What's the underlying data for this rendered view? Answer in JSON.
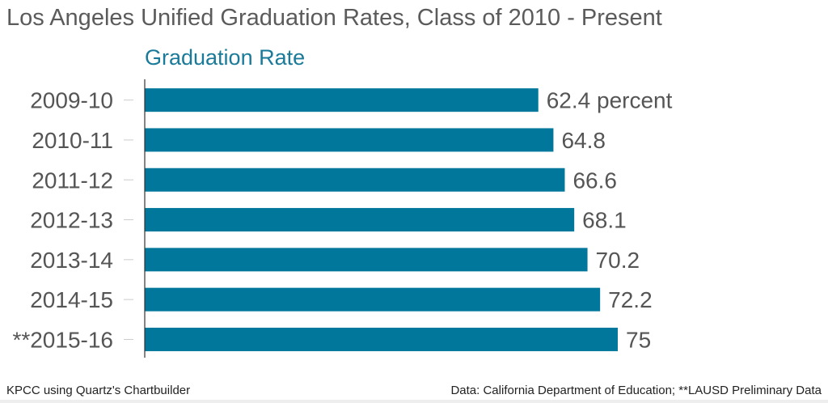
{
  "chart_data": {
    "type": "bar",
    "orientation": "horizontal",
    "title": "Los Angeles Unified Graduation Rates, Class of 2010 - Present",
    "series_title": "Graduation Rate",
    "categories": [
      "2009-10",
      "2010-11",
      "2011-12",
      "2012-13",
      "2013-14",
      "2014-15",
      "**2015-16"
    ],
    "values": [
      62.4,
      64.8,
      66.6,
      68.1,
      70.2,
      72.2,
      75
    ],
    "data_labels": [
      "62.4 percent",
      "64.8",
      "66.6",
      "68.1",
      "70.2",
      "72.2",
      "75"
    ],
    "xlim": [
      0,
      100
    ],
    "grid": false,
    "colors": {
      "bar": "#00779b",
      "series_title": "#1a7a99",
      "title": "#5b5b5b",
      "label": "#555555",
      "axis": "#333333",
      "tick": "#cccccc"
    }
  },
  "footer": {
    "credit": "KPCC using Quartz's Chartbuilder",
    "source": "Data: California Department of Education; **LAUSD Preliminary Data"
  }
}
